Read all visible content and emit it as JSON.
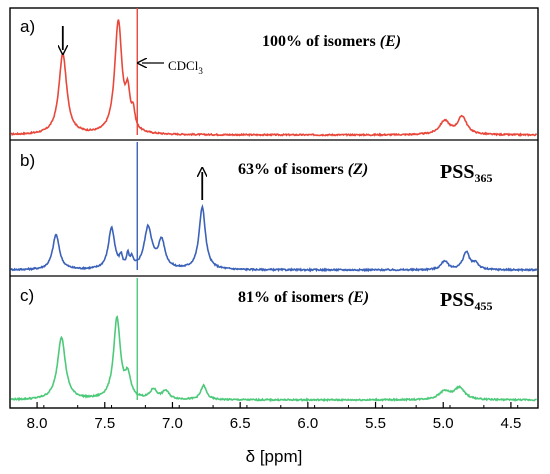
{
  "chart_data": {
    "type": "line",
    "xlabel": "δ [ppm]",
    "xlim": [
      8.2,
      4.3
    ],
    "x_reversed": true,
    "xticks": [
      "8.0",
      "7.5",
      "7.0",
      "6.5",
      "6.0",
      "5.5",
      "5.0",
      "4.5"
    ],
    "xtick_values": [
      8.0,
      7.5,
      7.0,
      6.5,
      6.0,
      5.5,
      5.0,
      4.5
    ],
    "grid": false,
    "panels": [
      {
        "letter": "a)",
        "color": "#e8473a",
        "annotation_prefix": "100% of isomers ",
        "annotation_isomer": "(E)",
        "pss_main": "",
        "pss_sub": "",
        "solvent_label": "CDCl",
        "solvent_sub": "3",
        "solvent_ppm": 7.26,
        "arrow": {
          "direction": "down",
          "ppm": 7.81
        },
        "peaks": [
          {
            "ppm": 7.81,
            "height": 0.72,
            "width": 0.035
          },
          {
            "ppm": 7.4,
            "height": 1.0,
            "width": 0.032
          },
          {
            "ppm": 7.33,
            "height": 0.3,
            "width": 0.02
          },
          {
            "ppm": 7.29,
            "height": 0.15,
            "width": 0.015
          },
          {
            "ppm": 4.99,
            "height": 0.12,
            "width": 0.045
          },
          {
            "ppm": 4.86,
            "height": 0.16,
            "width": 0.04
          }
        ]
      },
      {
        "letter": "b)",
        "color": "#3b62b8",
        "annotation_prefix": "63% of isomers ",
        "annotation_isomer": "(Z)",
        "pss_main": "PSS",
        "pss_sub": "365",
        "solvent_label": "",
        "solvent_sub": "",
        "solvent_ppm": 7.26,
        "arrow": {
          "direction": "up",
          "ppm": 6.78
        },
        "peaks": [
          {
            "ppm": 7.86,
            "height": 0.28,
            "width": 0.03
          },
          {
            "ppm": 7.45,
            "height": 0.33,
            "width": 0.028
          },
          {
            "ppm": 7.38,
            "height": 0.08,
            "width": 0.012
          },
          {
            "ppm": 7.33,
            "height": 0.1,
            "width": 0.012
          },
          {
            "ppm": 7.3,
            "height": 0.07,
            "width": 0.012
          },
          {
            "ppm": 7.18,
            "height": 0.33,
            "width": 0.035
          },
          {
            "ppm": 7.08,
            "height": 0.22,
            "width": 0.03
          },
          {
            "ppm": 6.78,
            "height": 0.5,
            "width": 0.028
          },
          {
            "ppm": 4.99,
            "height": 0.07,
            "width": 0.03
          },
          {
            "ppm": 4.83,
            "height": 0.14,
            "width": 0.03
          },
          {
            "ppm": 4.76,
            "height": 0.05,
            "width": 0.025
          }
        ]
      },
      {
        "letter": "c)",
        "color": "#4dc97a",
        "annotation_prefix": "81% of isomers ",
        "annotation_isomer": "(E)",
        "pss_main": "PSS",
        "pss_sub": "455",
        "solvent_label": "",
        "solvent_sub": "",
        "solvent_ppm": 7.26,
        "arrow": null,
        "peaks": [
          {
            "ppm": 7.82,
            "height": 0.53,
            "width": 0.035
          },
          {
            "ppm": 7.41,
            "height": 0.68,
            "width": 0.03
          },
          {
            "ppm": 7.33,
            "height": 0.18,
            "width": 0.025
          },
          {
            "ppm": 7.14,
            "height": 0.08,
            "width": 0.03
          },
          {
            "ppm": 7.05,
            "height": 0.07,
            "width": 0.03
          },
          {
            "ppm": 6.77,
            "height": 0.12,
            "width": 0.025
          },
          {
            "ppm": 4.99,
            "height": 0.07,
            "width": 0.05
          },
          {
            "ppm": 4.88,
            "height": 0.1,
            "width": 0.045
          }
        ]
      }
    ]
  }
}
